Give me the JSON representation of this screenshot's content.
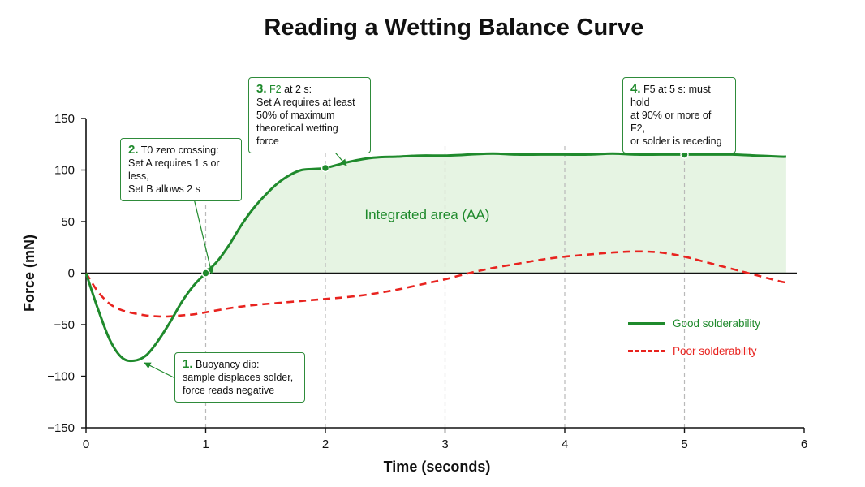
{
  "colors": {
    "good": "#1f8a2c",
    "poor": "#e8231f",
    "fill": "#e6f4e3",
    "callout_border": "#2e8b3a"
  },
  "chart_data": {
    "type": "line",
    "title": "Reading a Wetting Balance Curve",
    "xlabel": "Time (seconds)",
    "ylabel": "Force (mN)",
    "xlim": [
      0,
      6
    ],
    "ylim": [
      -150,
      150
    ],
    "xticks": [
      "0",
      "1",
      "2",
      "3",
      "4",
      "5",
      "6"
    ],
    "yticks": [
      "150",
      "100",
      "50",
      "0",
      "−50",
      "−100",
      "−150"
    ],
    "vertical_reference_lines_x": [
      1,
      2,
      3,
      4,
      5
    ],
    "series": [
      {
        "name": "Good solderability",
        "style": "solid",
        "x": [
          0,
          0.1,
          0.2,
          0.3,
          0.4,
          0.5,
          0.6,
          0.7,
          0.8,
          0.9,
          1.0,
          1.1,
          1.2,
          1.3,
          1.4,
          1.5,
          1.6,
          1.7,
          1.8,
          1.9,
          2.0,
          2.2,
          2.4,
          2.6,
          2.8,
          3.0,
          3.2,
          3.4,
          3.6,
          3.8,
          4.0,
          4.2,
          4.4,
          4.6,
          4.8,
          5.0,
          5.2,
          5.4,
          5.6,
          5.8,
          5.85
        ],
        "y": [
          0,
          -35,
          -65,
          -82,
          -85,
          -80,
          -66,
          -48,
          -28,
          -12,
          0,
          12,
          28,
          47,
          63,
          76,
          87,
          95,
          100,
          101,
          102,
          108,
          112,
          113,
          114,
          114,
          115,
          116,
          115,
          115,
          115,
          115,
          116,
          115,
          115,
          115,
          115,
          115,
          114,
          113,
          113
        ]
      },
      {
        "name": "Poor solderability",
        "style": "dashed",
        "x": [
          0,
          0.1,
          0.2,
          0.3,
          0.4,
          0.5,
          0.6,
          0.7,
          0.8,
          0.9,
          1.0,
          1.2,
          1.4,
          1.6,
          1.8,
          2.0,
          2.2,
          2.4,
          2.6,
          2.8,
          3.0,
          3.2,
          3.4,
          3.6,
          3.8,
          4.0,
          4.2,
          4.4,
          4.6,
          4.8,
          5.0,
          5.2,
          5.4,
          5.6,
          5.8,
          5.85
        ],
        "y": [
          0,
          -18,
          -30,
          -36,
          -39,
          -41,
          -42,
          -42,
          -41,
          -40,
          -38,
          -34,
          -31,
          -29,
          -27,
          -25,
          -23,
          -20,
          -16,
          -11,
          -6,
          0,
          5,
          9,
          13,
          16,
          18,
          20,
          21,
          20,
          16,
          10,
          4,
          -2,
          -8,
          -9
        ]
      }
    ],
    "annotations": [
      {
        "x": 2.85,
        "y": 57,
        "text": "Integrated area (AA)"
      }
    ],
    "legend_position": "center-right"
  },
  "callouts": [
    {
      "num": "1.",
      "highlight": "",
      "first_line_rest": "Buoyancy dip:",
      "lines": [
        "sample displaces solder,",
        "force reads negative"
      ]
    },
    {
      "num": "2.",
      "highlight": "",
      "first_line_rest": "T0 zero crossing:",
      "lines": [
        "Set A requires 1 s or less,",
        "Set B allows 2 s"
      ]
    },
    {
      "num": "3.",
      "highlight": "F2",
      "first_line_rest": " at 2 s:",
      "lines": [
        "Set A requires at least",
        "50% of maximum",
        "theoretical wetting force"
      ]
    },
    {
      "num": "4.",
      "highlight": "",
      "first_line_rest": "F5 at 5 s: must hold",
      "lines": [
        "at 90% or more of F2,",
        "or solder is receding"
      ]
    }
  ]
}
